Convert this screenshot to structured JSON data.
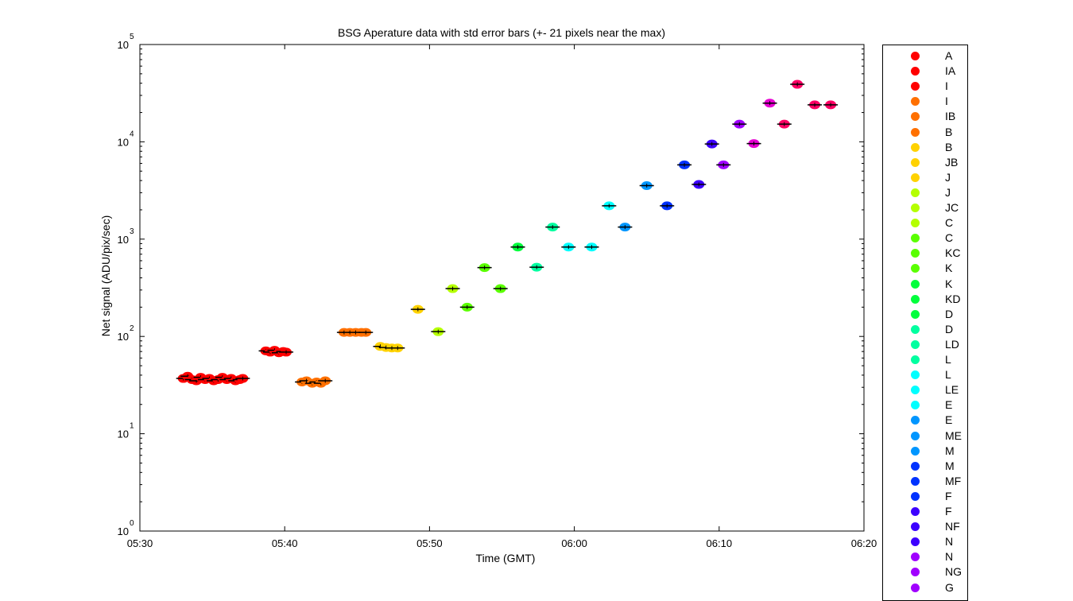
{
  "chart_data": {
    "type": "scatter",
    "title": "BSG Aperature data with std error bars (+- 21 pixels near the max)",
    "xlabel": "Time (GMT)",
    "ylabel": "Net signal (ADU/pix/sec)",
    "x_unit": "minutes after 05:30",
    "xlim": [
      0,
      50
    ],
    "x_ticks": [
      "05:30",
      "05:40",
      "05:50",
      "06:00",
      "06:10",
      "06:20"
    ],
    "y_scale": "log",
    "ylim": [
      1,
      100000
    ],
    "y_ticks": [
      {
        "base": "10",
        "exp": "0"
      },
      {
        "base": "10",
        "exp": "1"
      },
      {
        "base": "10",
        "exp": "2"
      },
      {
        "base": "10",
        "exp": "3"
      },
      {
        "base": "10",
        "exp": "4"
      },
      {
        "base": "10",
        "exp": "5"
      }
    ],
    "grid": false,
    "legend_position": "outside-right",
    "series": [
      {
        "name": "A",
        "color": "#ff0000"
      },
      {
        "name": "IA",
        "color": "#ff0000"
      },
      {
        "name": "I",
        "color": "#ff0000"
      },
      {
        "name": "I",
        "color": "#ff7000"
      },
      {
        "name": "IB",
        "color": "#ff7000"
      },
      {
        "name": "B",
        "color": "#ff7000"
      },
      {
        "name": "B",
        "color": "#ffd200"
      },
      {
        "name": "JB",
        "color": "#ffd200"
      },
      {
        "name": "J",
        "color": "#ffd200"
      },
      {
        "name": "J",
        "color": "#b4ff00"
      },
      {
        "name": "JC",
        "color": "#b4ff00"
      },
      {
        "name": "C",
        "color": "#b4ff00"
      },
      {
        "name": "C",
        "color": "#5aff00"
      },
      {
        "name": "KC",
        "color": "#5aff00"
      },
      {
        "name": "K",
        "color": "#5aff00"
      },
      {
        "name": "K",
        "color": "#00ff3c"
      },
      {
        "name": "KD",
        "color": "#00ff3c"
      },
      {
        "name": "D",
        "color": "#00ff3c"
      },
      {
        "name": "D",
        "color": "#00ffa0"
      },
      {
        "name": "LD",
        "color": "#00ffa0"
      },
      {
        "name": "L",
        "color": "#00ffa0"
      },
      {
        "name": "L",
        "color": "#00ffff"
      },
      {
        "name": "LE",
        "color": "#00ffff"
      },
      {
        "name": "E",
        "color": "#00ffff"
      },
      {
        "name": "E",
        "color": "#0096ff"
      },
      {
        "name": "ME",
        "color": "#0096ff"
      },
      {
        "name": "M",
        "color": "#0096ff"
      },
      {
        "name": "M",
        "color": "#0032ff"
      },
      {
        "name": "MF",
        "color": "#0032ff"
      },
      {
        "name": "F",
        "color": "#0032ff"
      },
      {
        "name": "F",
        "color": "#3c00ff"
      },
      {
        "name": "NF",
        "color": "#3c00ff"
      },
      {
        "name": "N",
        "color": "#3c00ff"
      },
      {
        "name": "N",
        "color": "#a000ff"
      },
      {
        "name": "NG",
        "color": "#a000ff"
      },
      {
        "name": "G",
        "color": "#a000ff"
      }
    ],
    "points": [
      {
        "x": 3.0,
        "y": 37,
        "color": "#ff0000"
      },
      {
        "x": 3.3,
        "y": 39,
        "color": "#ff0000"
      },
      {
        "x": 3.6,
        "y": 36,
        "color": "#ff0000"
      },
      {
        "x": 3.9,
        "y": 35,
        "color": "#ff0000"
      },
      {
        "x": 4.2,
        "y": 38,
        "color": "#ff0000"
      },
      {
        "x": 4.5,
        "y": 36,
        "color": "#ff0000"
      },
      {
        "x": 4.8,
        "y": 37,
        "color": "#ff0000"
      },
      {
        "x": 5.1,
        "y": 35,
        "color": "#ff0000"
      },
      {
        "x": 5.4,
        "y": 36,
        "color": "#ff0000"
      },
      {
        "x": 5.7,
        "y": 38,
        "color": "#ff0000"
      },
      {
        "x": 6.0,
        "y": 36,
        "color": "#ff0000"
      },
      {
        "x": 6.3,
        "y": 37,
        "color": "#ff0000"
      },
      {
        "x": 6.6,
        "y": 35,
        "color": "#ff0000"
      },
      {
        "x": 6.9,
        "y": 36,
        "color": "#ff0000"
      },
      {
        "x": 7.1,
        "y": 37,
        "color": "#ff0000"
      },
      {
        "x": 8.7,
        "y": 71,
        "color": "#ff0000"
      },
      {
        "x": 9.0,
        "y": 69,
        "color": "#ff0000"
      },
      {
        "x": 9.3,
        "y": 72,
        "color": "#ff0000"
      },
      {
        "x": 9.6,
        "y": 68,
        "color": "#ff0000"
      },
      {
        "x": 9.9,
        "y": 70,
        "color": "#ff0000"
      },
      {
        "x": 10.1,
        "y": 69,
        "color": "#ff0000"
      },
      {
        "x": 11.2,
        "y": 34,
        "color": "#ff7000"
      },
      {
        "x": 11.5,
        "y": 35,
        "color": "#ff7000"
      },
      {
        "x": 11.9,
        "y": 33,
        "color": "#ff7000"
      },
      {
        "x": 12.2,
        "y": 34,
        "color": "#ff7000"
      },
      {
        "x": 12.5,
        "y": 33,
        "color": "#ff7000"
      },
      {
        "x": 12.8,
        "y": 35,
        "color": "#ff7000"
      },
      {
        "x": 14.1,
        "y": 110,
        "color": "#ff7000"
      },
      {
        "x": 14.5,
        "y": 110,
        "color": "#ff7000"
      },
      {
        "x": 14.9,
        "y": 110,
        "color": "#ff7000"
      },
      {
        "x": 15.3,
        "y": 110,
        "color": "#ff7000"
      },
      {
        "x": 15.6,
        "y": 110,
        "color": "#ff7000"
      },
      {
        "x": 16.6,
        "y": 79,
        "color": "#ffd200"
      },
      {
        "x": 17.0,
        "y": 77,
        "color": "#ffd200"
      },
      {
        "x": 17.4,
        "y": 76,
        "color": "#ffd200"
      },
      {
        "x": 17.8,
        "y": 76,
        "color": "#ffd200"
      },
      {
        "x": 19.2,
        "y": 190,
        "color": "#ffd200"
      },
      {
        "x": 20.6,
        "y": 112,
        "color": "#b4ff00"
      },
      {
        "x": 21.6,
        "y": 310,
        "color": "#b4ff00"
      },
      {
        "x": 22.6,
        "y": 200,
        "color": "#5aff00"
      },
      {
        "x": 23.8,
        "y": 510,
        "color": "#5aff00"
      },
      {
        "x": 24.9,
        "y": 310,
        "color": "#5aff00"
      },
      {
        "x": 26.1,
        "y": 830,
        "color": "#00ff3c"
      },
      {
        "x": 27.4,
        "y": 515,
        "color": "#00ffa0"
      },
      {
        "x": 28.5,
        "y": 1330,
        "color": "#00ffa0"
      },
      {
        "x": 29.6,
        "y": 830,
        "color": "#00ffff"
      },
      {
        "x": 31.2,
        "y": 830,
        "color": "#00ffff"
      },
      {
        "x": 32.4,
        "y": 2200,
        "color": "#00ffff"
      },
      {
        "x": 33.5,
        "y": 1330,
        "color": "#0096ff"
      },
      {
        "x": 35.0,
        "y": 3550,
        "color": "#0096ff"
      },
      {
        "x": 36.4,
        "y": 2200,
        "color": "#0032ff"
      },
      {
        "x": 37.6,
        "y": 5800,
        "color": "#0032ff"
      },
      {
        "x": 38.6,
        "y": 3650,
        "color": "#3c00ff"
      },
      {
        "x": 39.5,
        "y": 9500,
        "color": "#3c00ff"
      },
      {
        "x": 40.3,
        "y": 5800,
        "color": "#a000ff"
      },
      {
        "x": 41.4,
        "y": 15200,
        "color": "#a000ff"
      },
      {
        "x": 42.4,
        "y": 9600,
        "color": "#e600d2"
      },
      {
        "x": 43.5,
        "y": 25000,
        "color": "#e600d2"
      },
      {
        "x": 44.5,
        "y": 15200,
        "color": "#ff0064"
      },
      {
        "x": 45.4,
        "y": 39000,
        "color": "#ff0064"
      },
      {
        "x": 46.6,
        "y": 24000,
        "color": "#ff0064"
      },
      {
        "x": 47.7,
        "y": 24000,
        "color": "#ff0064"
      }
    ]
  }
}
